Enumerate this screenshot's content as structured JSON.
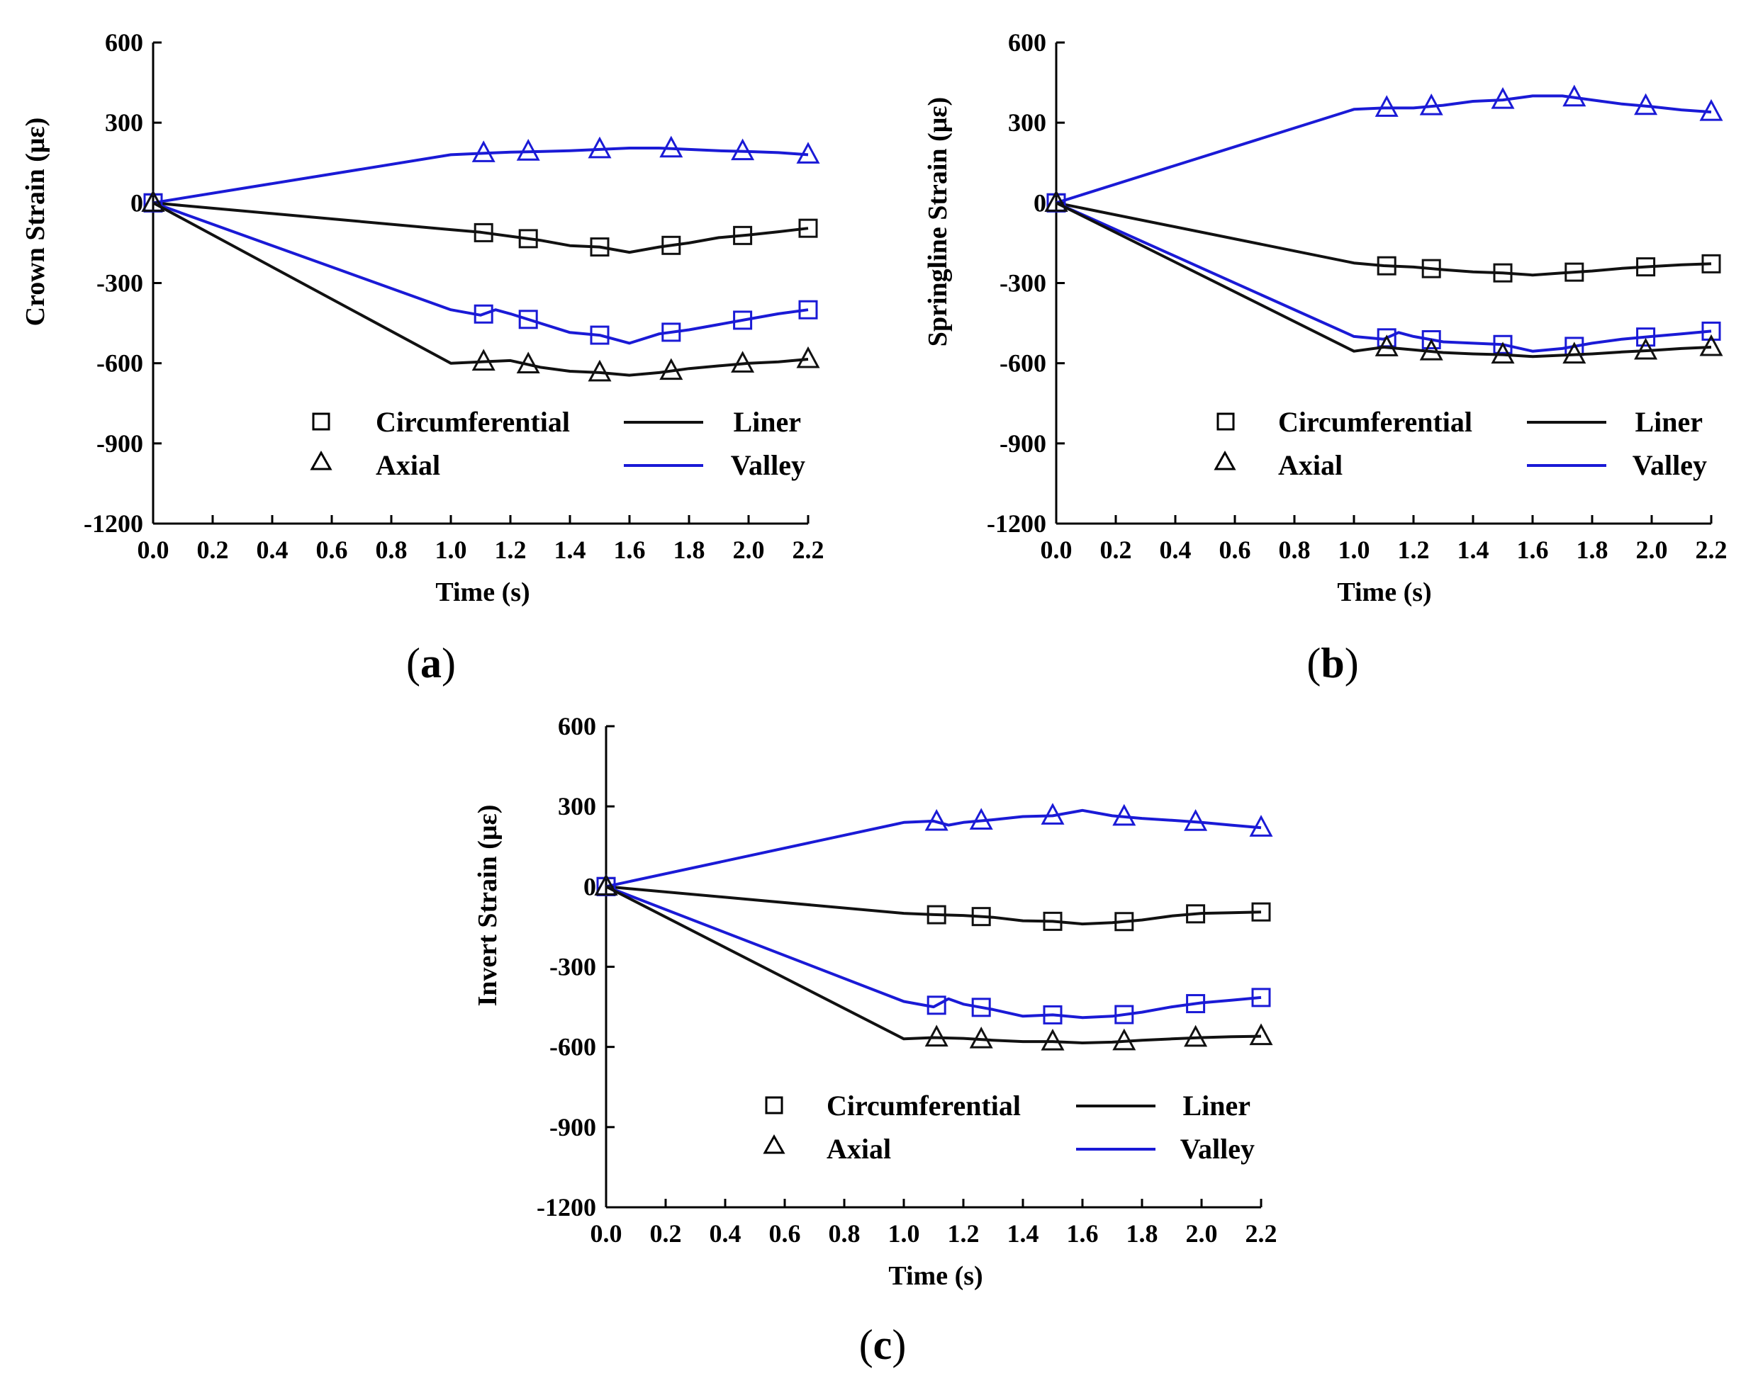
{
  "colors": {
    "liner": "#111111",
    "valley": "#1a1ad6",
    "axis": "#000000"
  },
  "legend": {
    "circumferential": "Circumferential",
    "axial": "Axial",
    "liner": "Liner",
    "valley": "Valley"
  },
  "chart_data": [
    {
      "type": "line",
      "panel": "(a)",
      "panel_letter": "a",
      "xlabel": "Time (s)",
      "ylabel": "Crown Strain (με)",
      "xlim": [
        0,
        2.2
      ],
      "ylim": [
        -1200,
        600
      ],
      "xticks": [
        "0.0",
        "0.2",
        "0.4",
        "0.6",
        "0.8",
        "1.0",
        "1.2",
        "1.4",
        "1.6",
        "1.8",
        "2.0",
        "2.2"
      ],
      "yticks": [
        "600",
        "300",
        "0",
        "-300",
        "-600",
        "-900",
        "-1200"
      ],
      "legend_placement": "bottom-right",
      "series": [
        {
          "name": "Valley Axial",
          "color": "valley",
          "marker": "triangle",
          "x": [
            0,
            1.0,
            1.1,
            1.2,
            1.3,
            1.4,
            1.5,
            1.6,
            1.7,
            1.8,
            1.9,
            2.0,
            2.1,
            2.2
          ],
          "y": [
            0,
            180,
            185,
            190,
            192,
            195,
            200,
            205,
            205,
            200,
            195,
            192,
            188,
            180
          ],
          "marker_x": [
            0,
            1.11,
            1.26,
            1.5,
            1.74,
            1.98,
            2.2
          ]
        },
        {
          "name": "Liner Circumferential",
          "color": "liner",
          "marker": "square",
          "x": [
            0,
            1.0,
            1.1,
            1.2,
            1.3,
            1.4,
            1.5,
            1.6,
            1.7,
            1.8,
            1.9,
            2.0,
            2.1,
            2.2
          ],
          "y": [
            0,
            -100,
            -110,
            -125,
            -140,
            -160,
            -165,
            -185,
            -165,
            -150,
            -130,
            -120,
            -108,
            -95
          ],
          "marker_x": [
            0,
            1.11,
            1.26,
            1.5,
            1.74,
            1.98,
            2.2
          ]
        },
        {
          "name": "Valley Circumferential",
          "color": "valley",
          "marker": "square",
          "x": [
            0,
            1.0,
            1.1,
            1.15,
            1.2,
            1.3,
            1.4,
            1.5,
            1.6,
            1.7,
            1.8,
            1.9,
            2.0,
            2.1,
            2.2
          ],
          "y": [
            0,
            -400,
            -420,
            -400,
            -415,
            -450,
            -485,
            -495,
            -525,
            -490,
            -475,
            -455,
            -435,
            -415,
            -400
          ],
          "marker_x": [
            0,
            1.11,
            1.26,
            1.5,
            1.74,
            1.98,
            2.2
          ]
        },
        {
          "name": "Liner Axial",
          "color": "liner",
          "marker": "triangle",
          "x": [
            0,
            1.0,
            1.1,
            1.2,
            1.3,
            1.4,
            1.5,
            1.6,
            1.7,
            1.8,
            1.9,
            2.0,
            2.1,
            2.2
          ],
          "y": [
            0,
            -600,
            -595,
            -590,
            -615,
            -630,
            -635,
            -645,
            -635,
            -620,
            -610,
            -600,
            -595,
            -585
          ],
          "marker_x": [
            0,
            1.11,
            1.26,
            1.5,
            1.74,
            1.98,
            2.2
          ]
        }
      ]
    },
    {
      "type": "line",
      "panel": "(b)",
      "panel_letter": "b",
      "xlabel": "Time (s)",
      "ylabel": "Springline Strain (με)",
      "xlim": [
        0,
        2.2
      ],
      "ylim": [
        -1200,
        600
      ],
      "xticks": [
        "0.0",
        "0.2",
        "0.4",
        "0.6",
        "0.8",
        "1.0",
        "1.2",
        "1.4",
        "1.6",
        "1.8",
        "2.0",
        "2.2"
      ],
      "yticks": [
        "600",
        "300",
        "0",
        "-300",
        "-600",
        "-900",
        "-1200"
      ],
      "legend_placement": "bottom-right",
      "series": [
        {
          "name": "Valley Axial",
          "color": "valley",
          "marker": "triangle",
          "x": [
            0,
            1.0,
            1.1,
            1.2,
            1.3,
            1.4,
            1.5,
            1.6,
            1.7,
            1.8,
            1.9,
            2.0,
            2.1,
            2.2
          ],
          "y": [
            0,
            350,
            355,
            355,
            365,
            380,
            385,
            400,
            400,
            385,
            370,
            360,
            348,
            340
          ],
          "marker_x": [
            0,
            1.11,
            1.26,
            1.5,
            1.74,
            1.98,
            2.2
          ]
        },
        {
          "name": "Liner Circumferential",
          "color": "liner",
          "marker": "square",
          "x": [
            0,
            1.0,
            1.1,
            1.2,
            1.3,
            1.4,
            1.5,
            1.6,
            1.7,
            1.8,
            1.9,
            2.0,
            2.1,
            2.2
          ],
          "y": [
            0,
            -225,
            -235,
            -240,
            -250,
            -258,
            -262,
            -270,
            -262,
            -255,
            -245,
            -238,
            -232,
            -228
          ],
          "marker_x": [
            0,
            1.11,
            1.26,
            1.5,
            1.74,
            1.98,
            2.2
          ]
        },
        {
          "name": "Valley Circumferential",
          "color": "valley",
          "marker": "square",
          "x": [
            0,
            1.0,
            1.1,
            1.15,
            1.2,
            1.3,
            1.4,
            1.5,
            1.6,
            1.7,
            1.8,
            1.9,
            2.0,
            2.1,
            2.2
          ],
          "y": [
            0,
            -500,
            -510,
            -485,
            -500,
            -520,
            -525,
            -530,
            -555,
            -545,
            -525,
            -510,
            -500,
            -490,
            -480
          ],
          "marker_x": [
            0,
            1.11,
            1.26,
            1.5,
            1.74,
            1.98,
            2.2
          ]
        },
        {
          "name": "Liner Axial",
          "color": "liner",
          "marker": "triangle",
          "x": [
            0,
            1.0,
            1.1,
            1.2,
            1.3,
            1.4,
            1.5,
            1.6,
            1.7,
            1.8,
            1.9,
            2.0,
            2.1,
            2.2
          ],
          "y": [
            0,
            -555,
            -540,
            -550,
            -560,
            -565,
            -568,
            -575,
            -570,
            -565,
            -558,
            -552,
            -545,
            -540
          ],
          "marker_x": [
            0,
            1.11,
            1.26,
            1.5,
            1.74,
            1.98,
            2.2
          ]
        }
      ]
    },
    {
      "type": "line",
      "panel": "(c)",
      "panel_letter": "c",
      "xlabel": "Time (s)",
      "ylabel": "Invert Strain (με)",
      "xlim": [
        0,
        2.2
      ],
      "ylim": [
        -1200,
        600
      ],
      "xticks": [
        "0.0",
        "0.2",
        "0.4",
        "0.6",
        "0.8",
        "1.0",
        "1.2",
        "1.4",
        "1.6",
        "1.8",
        "2.0",
        "2.2"
      ],
      "yticks": [
        "600",
        "300",
        "0",
        "-300",
        "-600",
        "-900",
        "-1200"
      ],
      "legend_placement": "bottom-right",
      "series": [
        {
          "name": "Valley Axial",
          "color": "valley",
          "marker": "triangle",
          "x": [
            0,
            1.0,
            1.1,
            1.15,
            1.2,
            1.3,
            1.4,
            1.5,
            1.6,
            1.7,
            1.8,
            1.9,
            2.0,
            2.1,
            2.2
          ],
          "y": [
            0,
            240,
            245,
            230,
            240,
            250,
            262,
            265,
            285,
            265,
            255,
            248,
            240,
            230,
            220
          ],
          "marker_x": [
            0,
            1.11,
            1.26,
            1.5,
            1.74,
            1.98,
            2.2
          ]
        },
        {
          "name": "Liner Circumferential",
          "color": "liner",
          "marker": "square",
          "x": [
            0,
            1.0,
            1.1,
            1.2,
            1.3,
            1.4,
            1.5,
            1.6,
            1.7,
            1.8,
            1.9,
            2.0,
            2.1,
            2.2
          ],
          "y": [
            0,
            -100,
            -105,
            -108,
            -115,
            -128,
            -130,
            -140,
            -135,
            -125,
            -110,
            -100,
            -98,
            -95
          ],
          "marker_x": [
            0,
            1.11,
            1.26,
            1.5,
            1.74,
            1.98,
            2.2
          ]
        },
        {
          "name": "Valley Circumferential",
          "color": "valley",
          "marker": "square",
          "x": [
            0,
            1.0,
            1.1,
            1.15,
            1.2,
            1.3,
            1.4,
            1.5,
            1.6,
            1.7,
            1.8,
            1.9,
            2.0,
            2.1,
            2.2
          ],
          "y": [
            0,
            -430,
            -450,
            -420,
            -440,
            -460,
            -485,
            -480,
            -490,
            -485,
            -470,
            -450,
            -435,
            -425,
            -415
          ],
          "marker_x": [
            0,
            1.11,
            1.26,
            1.5,
            1.74,
            1.98,
            2.2
          ]
        },
        {
          "name": "Liner Axial",
          "color": "liner",
          "marker": "triangle",
          "x": [
            0,
            1.0,
            1.1,
            1.2,
            1.3,
            1.4,
            1.5,
            1.6,
            1.7,
            1.8,
            1.9,
            2.0,
            2.1,
            2.2
          ],
          "y": [
            0,
            -570,
            -565,
            -568,
            -575,
            -580,
            -580,
            -585,
            -582,
            -575,
            -570,
            -565,
            -562,
            -560
          ],
          "marker_x": [
            0,
            1.11,
            1.26,
            1.5,
            1.74,
            1.98,
            2.2
          ]
        }
      ]
    }
  ]
}
